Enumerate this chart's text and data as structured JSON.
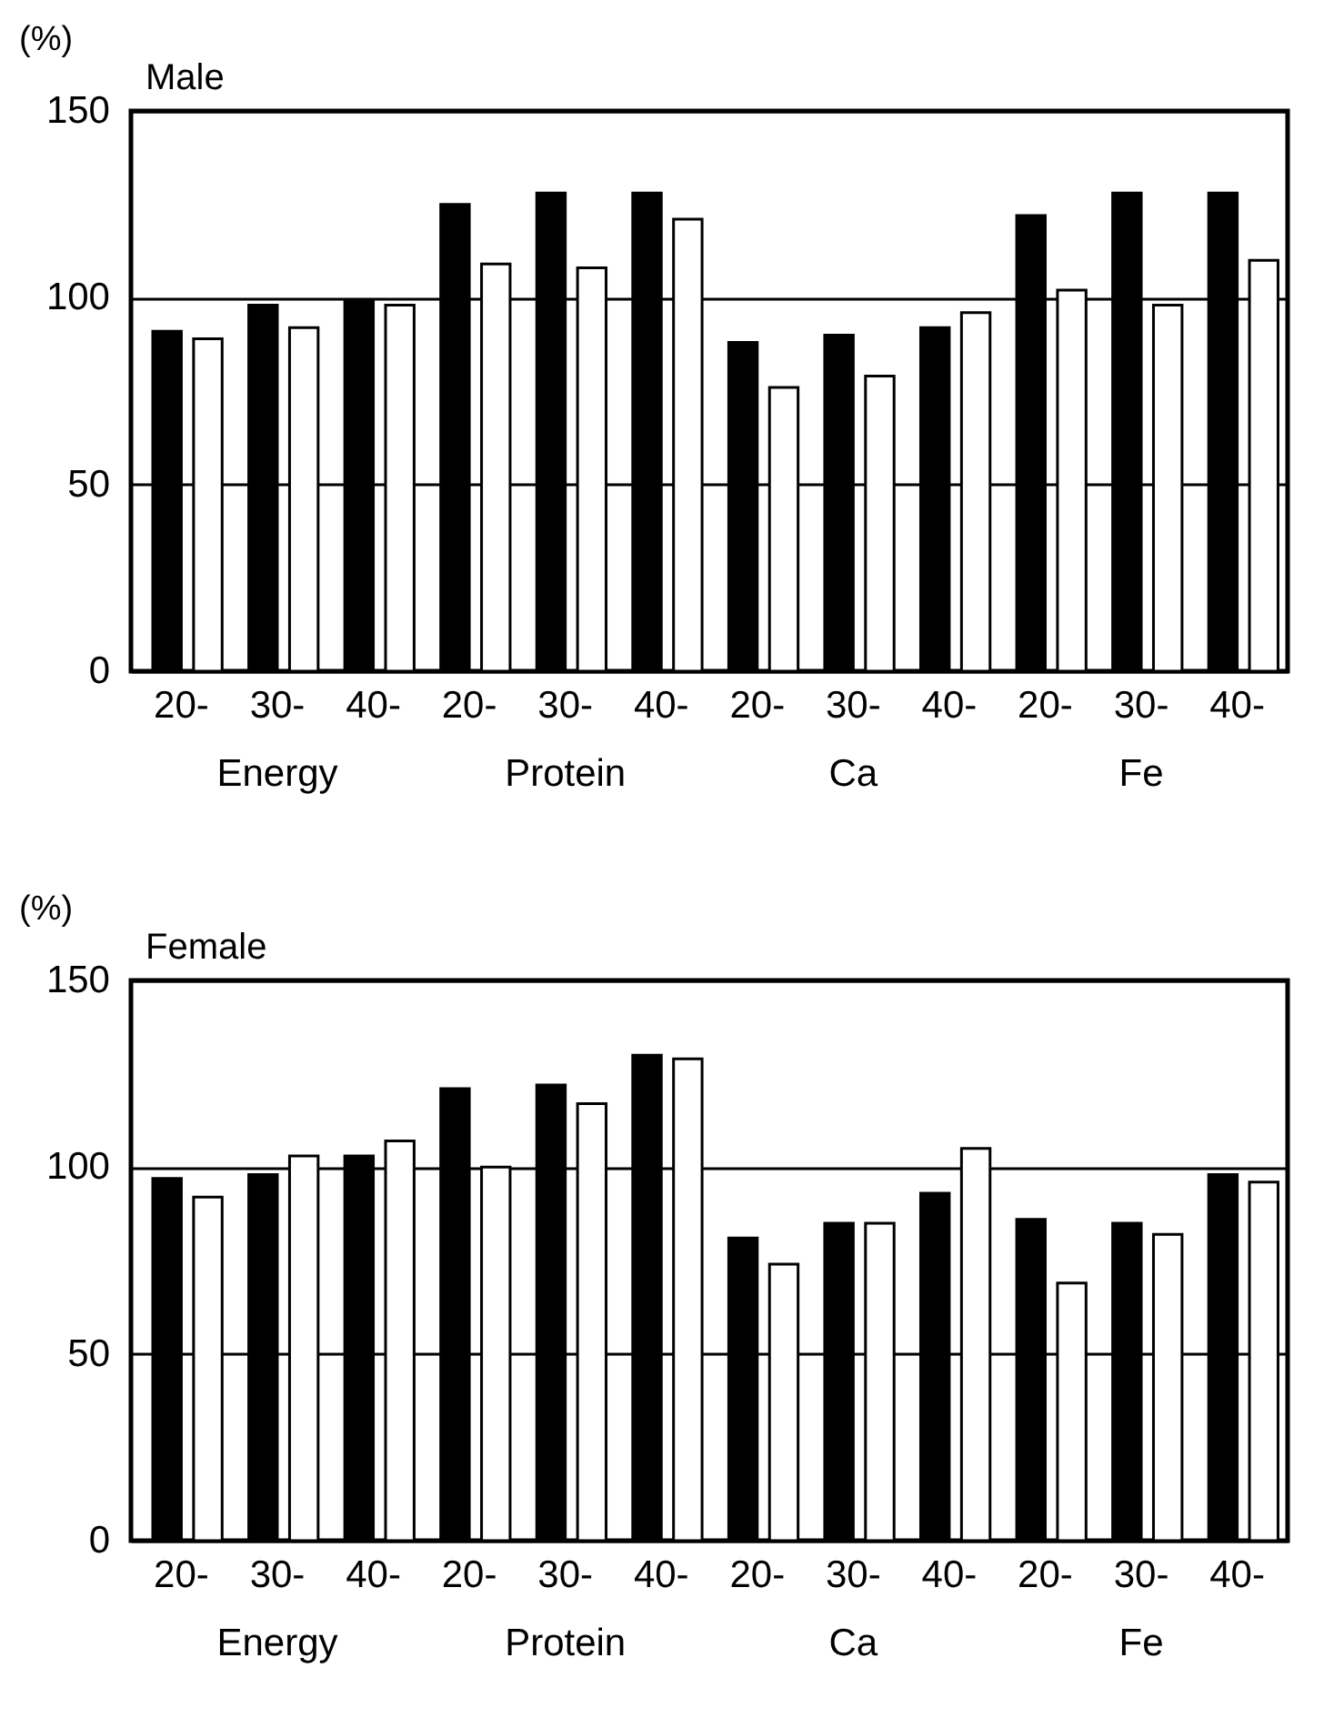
{
  "chart_data": [
    {
      "type": "bar",
      "title": "Male",
      "ylabel": "(%)",
      "categories": [
        "20-",
        "30-",
        "40-",
        "20-",
        "30-",
        "40-",
        "20-",
        "30-",
        "40-",
        "20-",
        "30-",
        "40-"
      ],
      "annotations": [
        "Energy",
        "Protein",
        "Ca",
        "Fe"
      ],
      "series": [
        {
          "color": "#000000",
          "values": [
            91,
            98,
            99,
            125,
            128,
            128,
            88,
            90,
            92,
            122,
            128,
            128
          ]
        },
        {
          "color": "#ffffff",
          "values": [
            89,
            92,
            98,
            109,
            108,
            121,
            76,
            79,
            96,
            102,
            98,
            110
          ]
        }
      ],
      "ylim": [
        0,
        150
      ],
      "yticks": [
        0,
        50,
        100,
        150
      ],
      "grid": "y",
      "legend": false
    },
    {
      "type": "bar",
      "title": "Female",
      "ylabel": "(%)",
      "categories": [
        "20-",
        "30-",
        "40-",
        "20-",
        "30-",
        "40-",
        "20-",
        "30-",
        "40-",
        "20-",
        "30-",
        "40-"
      ],
      "annotations": [
        "Energy",
        "Protein",
        "Ca",
        "Fe"
      ],
      "series": [
        {
          "color": "#000000",
          "values": [
            97,
            98,
            103,
            121,
            122,
            130,
            81,
            85,
            93,
            86,
            85,
            98
          ]
        },
        {
          "color": "#ffffff",
          "values": [
            92,
            103,
            107,
            100,
            117,
            129,
            74,
            85,
            105,
            69,
            82,
            96
          ]
        }
      ],
      "ylim": [
        0,
        150
      ],
      "yticks": [
        0,
        50,
        100,
        150
      ],
      "grid": "y",
      "legend": false
    }
  ]
}
